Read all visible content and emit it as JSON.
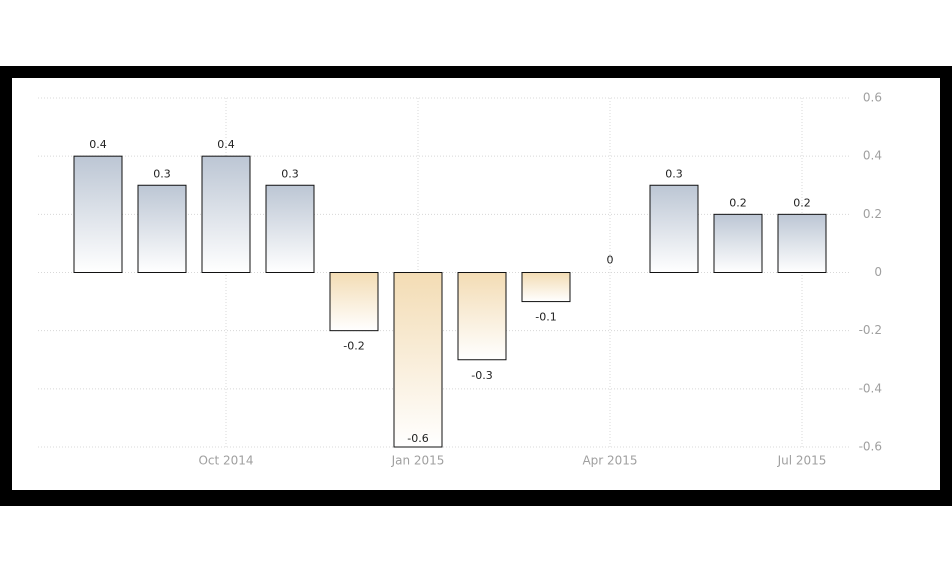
{
  "chart_data": {
    "type": "bar",
    "categories": [
      null,
      null,
      "Oct 2014",
      null,
      null,
      "Jan 2015",
      null,
      null,
      "Apr 2015",
      null,
      null,
      "Jul 2015"
    ],
    "values": [
      0.4,
      0.3,
      0.4,
      0.3,
      -0.2,
      -0.6,
      -0.3,
      -0.1,
      0,
      0.3,
      0.2,
      0.2
    ],
    "ylim": [
      -0.6,
      0.6
    ],
    "yticks": [
      -0.6,
      -0.4,
      -0.2,
      0,
      0.2,
      0.4,
      0.6
    ],
    "grid": true,
    "colors": {
      "positive": "#bcc6d4",
      "negative": "#f3dcb4"
    }
  }
}
